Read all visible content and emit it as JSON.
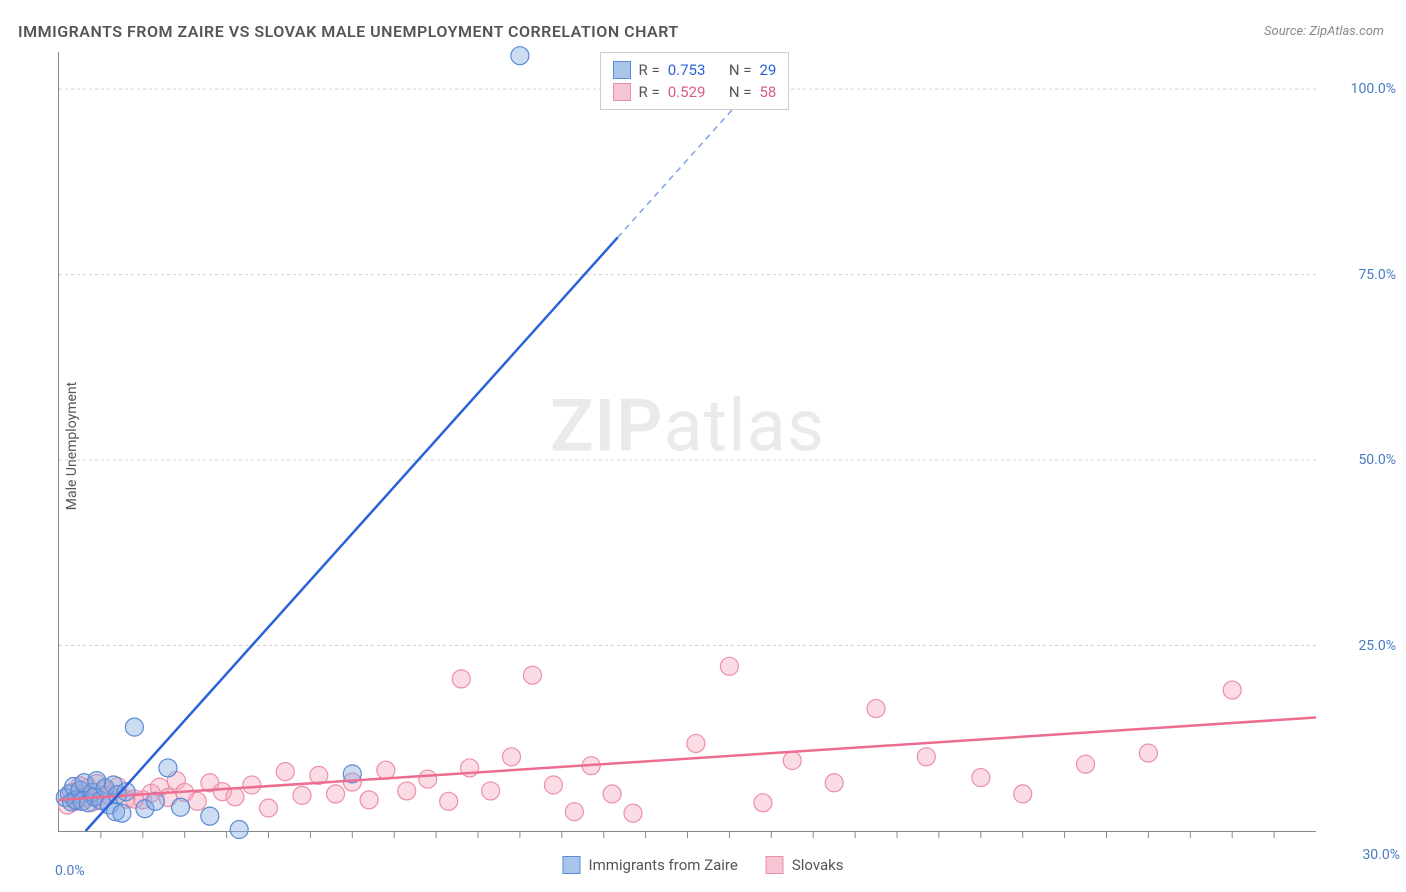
{
  "title": "IMMIGRANTS FROM ZAIRE VS SLOVAK MALE UNEMPLOYMENT CORRELATION CHART",
  "source": "Source: ZipAtlas.com",
  "y_axis_label": "Male Unemployment",
  "watermark_a": "ZIP",
  "watermark_b": "atlas",
  "chart": {
    "type": "scatter",
    "background_color": "#ffffff",
    "grid_color": "#d0d0d0",
    "axis_color": "#888888",
    "xlim": [
      0,
      30
    ],
    "ylim": [
      0,
      105
    ],
    "x_ticks_major": [
      0,
      30
    ],
    "x_ticks_minor": [
      1,
      2,
      3,
      4,
      5,
      6,
      7,
      8,
      9,
      10,
      11,
      12,
      13,
      14,
      15,
      16,
      17,
      18,
      19,
      20,
      21,
      22,
      23,
      24,
      25,
      26,
      27,
      28,
      29
    ],
    "y_ticks": [
      25,
      50,
      75,
      100
    ],
    "x_tick_labels": {
      "0": "0.0%",
      "30": "30.0%"
    },
    "y_tick_labels": {
      "25": "25.0%",
      "50": "50.0%",
      "75": "75.0%",
      "100": "100.0%"
    },
    "tick_label_color": "#4a7bc8",
    "tick_label_fontsize": 14,
    "marker_radius": 9,
    "series": {
      "zaire": {
        "label": "Immigrants from Zaire",
        "fill": "#7fa8e0",
        "stroke": "#5a8bd4",
        "R": "0.753",
        "N": "29",
        "trend": {
          "slope": 6.3,
          "intercept": -4.0,
          "color": "#2962d9",
          "width": 2.5
        },
        "points": [
          [
            0.15,
            4.5
          ],
          [
            0.25,
            5.0
          ],
          [
            0.3,
            3.9
          ],
          [
            0.35,
            6.0
          ],
          [
            0.4,
            4.2
          ],
          [
            0.5,
            5.5
          ],
          [
            0.55,
            4.0
          ],
          [
            0.6,
            6.5
          ],
          [
            0.7,
            3.8
          ],
          [
            0.8,
            5.2
          ],
          [
            0.85,
            4.6
          ],
          [
            0.9,
            6.8
          ],
          [
            1.0,
            4.1
          ],
          [
            1.1,
            5.8
          ],
          [
            1.2,
            3.5
          ],
          [
            1.3,
            6.2
          ],
          [
            1.35,
            2.6
          ],
          [
            1.4,
            4.9
          ],
          [
            1.5,
            2.4
          ],
          [
            1.6,
            5.3
          ],
          [
            1.8,
            14.0
          ],
          [
            2.05,
            3.0
          ],
          [
            2.3,
            4.0
          ],
          [
            2.6,
            8.5
          ],
          [
            2.9,
            3.2
          ],
          [
            3.6,
            2.0
          ],
          [
            4.3,
            0.2
          ],
          [
            7.0,
            7.7
          ],
          [
            11.0,
            104.5
          ]
        ]
      },
      "slovaks": {
        "label": "Slovaks",
        "fill": "#f5a8bd",
        "stroke": "#ec8fa8",
        "R": "0.529",
        "N": "58",
        "trend": {
          "slope": 0.37,
          "intercept": 4.2,
          "color": "#ec6d8f",
          "width": 2.5
        },
        "points": [
          [
            0.2,
            3.5
          ],
          [
            0.3,
            5.2
          ],
          [
            0.4,
            4.0
          ],
          [
            0.5,
            6.1
          ],
          [
            0.6,
            4.5
          ],
          [
            0.7,
            5.8
          ],
          [
            0.8,
            3.9
          ],
          [
            0.9,
            6.4
          ],
          [
            1.0,
            4.2
          ],
          [
            1.1,
            5.5
          ],
          [
            1.2,
            4.8
          ],
          [
            1.4,
            6.0
          ],
          [
            1.6,
            4.3
          ],
          [
            1.8,
            4.3
          ],
          [
            2.0,
            4.2
          ],
          [
            2.2,
            5.1
          ],
          [
            2.4,
            5.9
          ],
          [
            2.6,
            4.5
          ],
          [
            2.8,
            6.8
          ],
          [
            3.0,
            5.2
          ],
          [
            3.3,
            4.0
          ],
          [
            3.6,
            6.5
          ],
          [
            3.9,
            5.3
          ],
          [
            4.2,
            4.6
          ],
          [
            4.6,
            6.2
          ],
          [
            5.0,
            3.1
          ],
          [
            5.4,
            8.0
          ],
          [
            5.8,
            4.8
          ],
          [
            6.2,
            7.5
          ],
          [
            6.6,
            5.0
          ],
          [
            7.0,
            6.6
          ],
          [
            7.4,
            4.2
          ],
          [
            7.8,
            8.2
          ],
          [
            8.3,
            5.4
          ],
          [
            8.8,
            7.0
          ],
          [
            9.3,
            4.0
          ],
          [
            9.6,
            20.5
          ],
          [
            9.8,
            8.5
          ],
          [
            10.3,
            5.4
          ],
          [
            10.8,
            10.0
          ],
          [
            11.3,
            21.0
          ],
          [
            11.8,
            6.2
          ],
          [
            12.3,
            2.6
          ],
          [
            12.7,
            8.8
          ],
          [
            13.2,
            5.0
          ],
          [
            13.7,
            2.4
          ],
          [
            15.2,
            11.8
          ],
          [
            16.0,
            22.2
          ],
          [
            16.8,
            3.8
          ],
          [
            17.5,
            9.5
          ],
          [
            18.5,
            6.5
          ],
          [
            19.5,
            16.5
          ],
          [
            20.7,
            10.0
          ],
          [
            22.0,
            7.2
          ],
          [
            23.0,
            5.0
          ],
          [
            24.5,
            9.0
          ],
          [
            26.0,
            10.5
          ],
          [
            28.0,
            19.0
          ]
        ]
      }
    },
    "stats_labels": {
      "R": "R =",
      "N": "N ="
    }
  },
  "legend": {
    "zaire": "Immigrants from Zaire",
    "slovaks": "Slovaks"
  }
}
